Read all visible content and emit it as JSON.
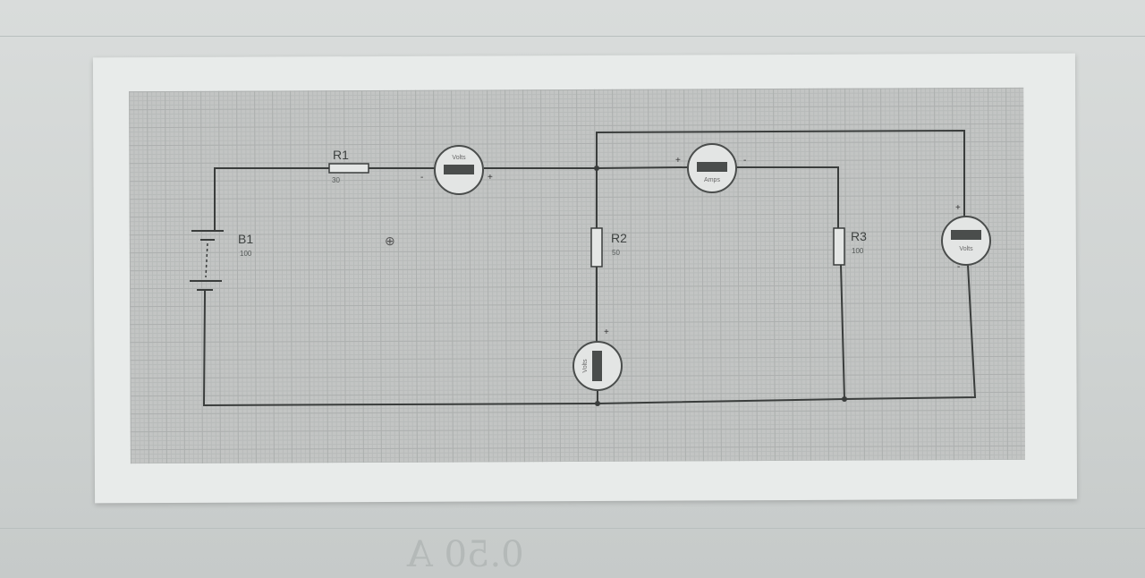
{
  "components": {
    "battery": {
      "name": "B1",
      "value": "100"
    },
    "r1": {
      "name": "R1",
      "value": "30"
    },
    "r2": {
      "name": "R2",
      "value": "50"
    },
    "r3": {
      "name": "R3",
      "value": "100"
    }
  },
  "meters": {
    "voltmeter_r1": {
      "unit": "Volts",
      "reading": "",
      "minus": "-",
      "plus": "+"
    },
    "ammeter_r3": {
      "unit": "Amps",
      "reading": "",
      "minus": "-",
      "plus": "+"
    },
    "voltmeter_right": {
      "unit": "Volts",
      "reading": "",
      "minus": "-",
      "plus": "+"
    },
    "voltmeter_bottom": {
      "unit": "Volts",
      "reading": "",
      "plus": "+"
    }
  },
  "crosshair_glyph": "⊕",
  "handwriting": "0.50 A"
}
